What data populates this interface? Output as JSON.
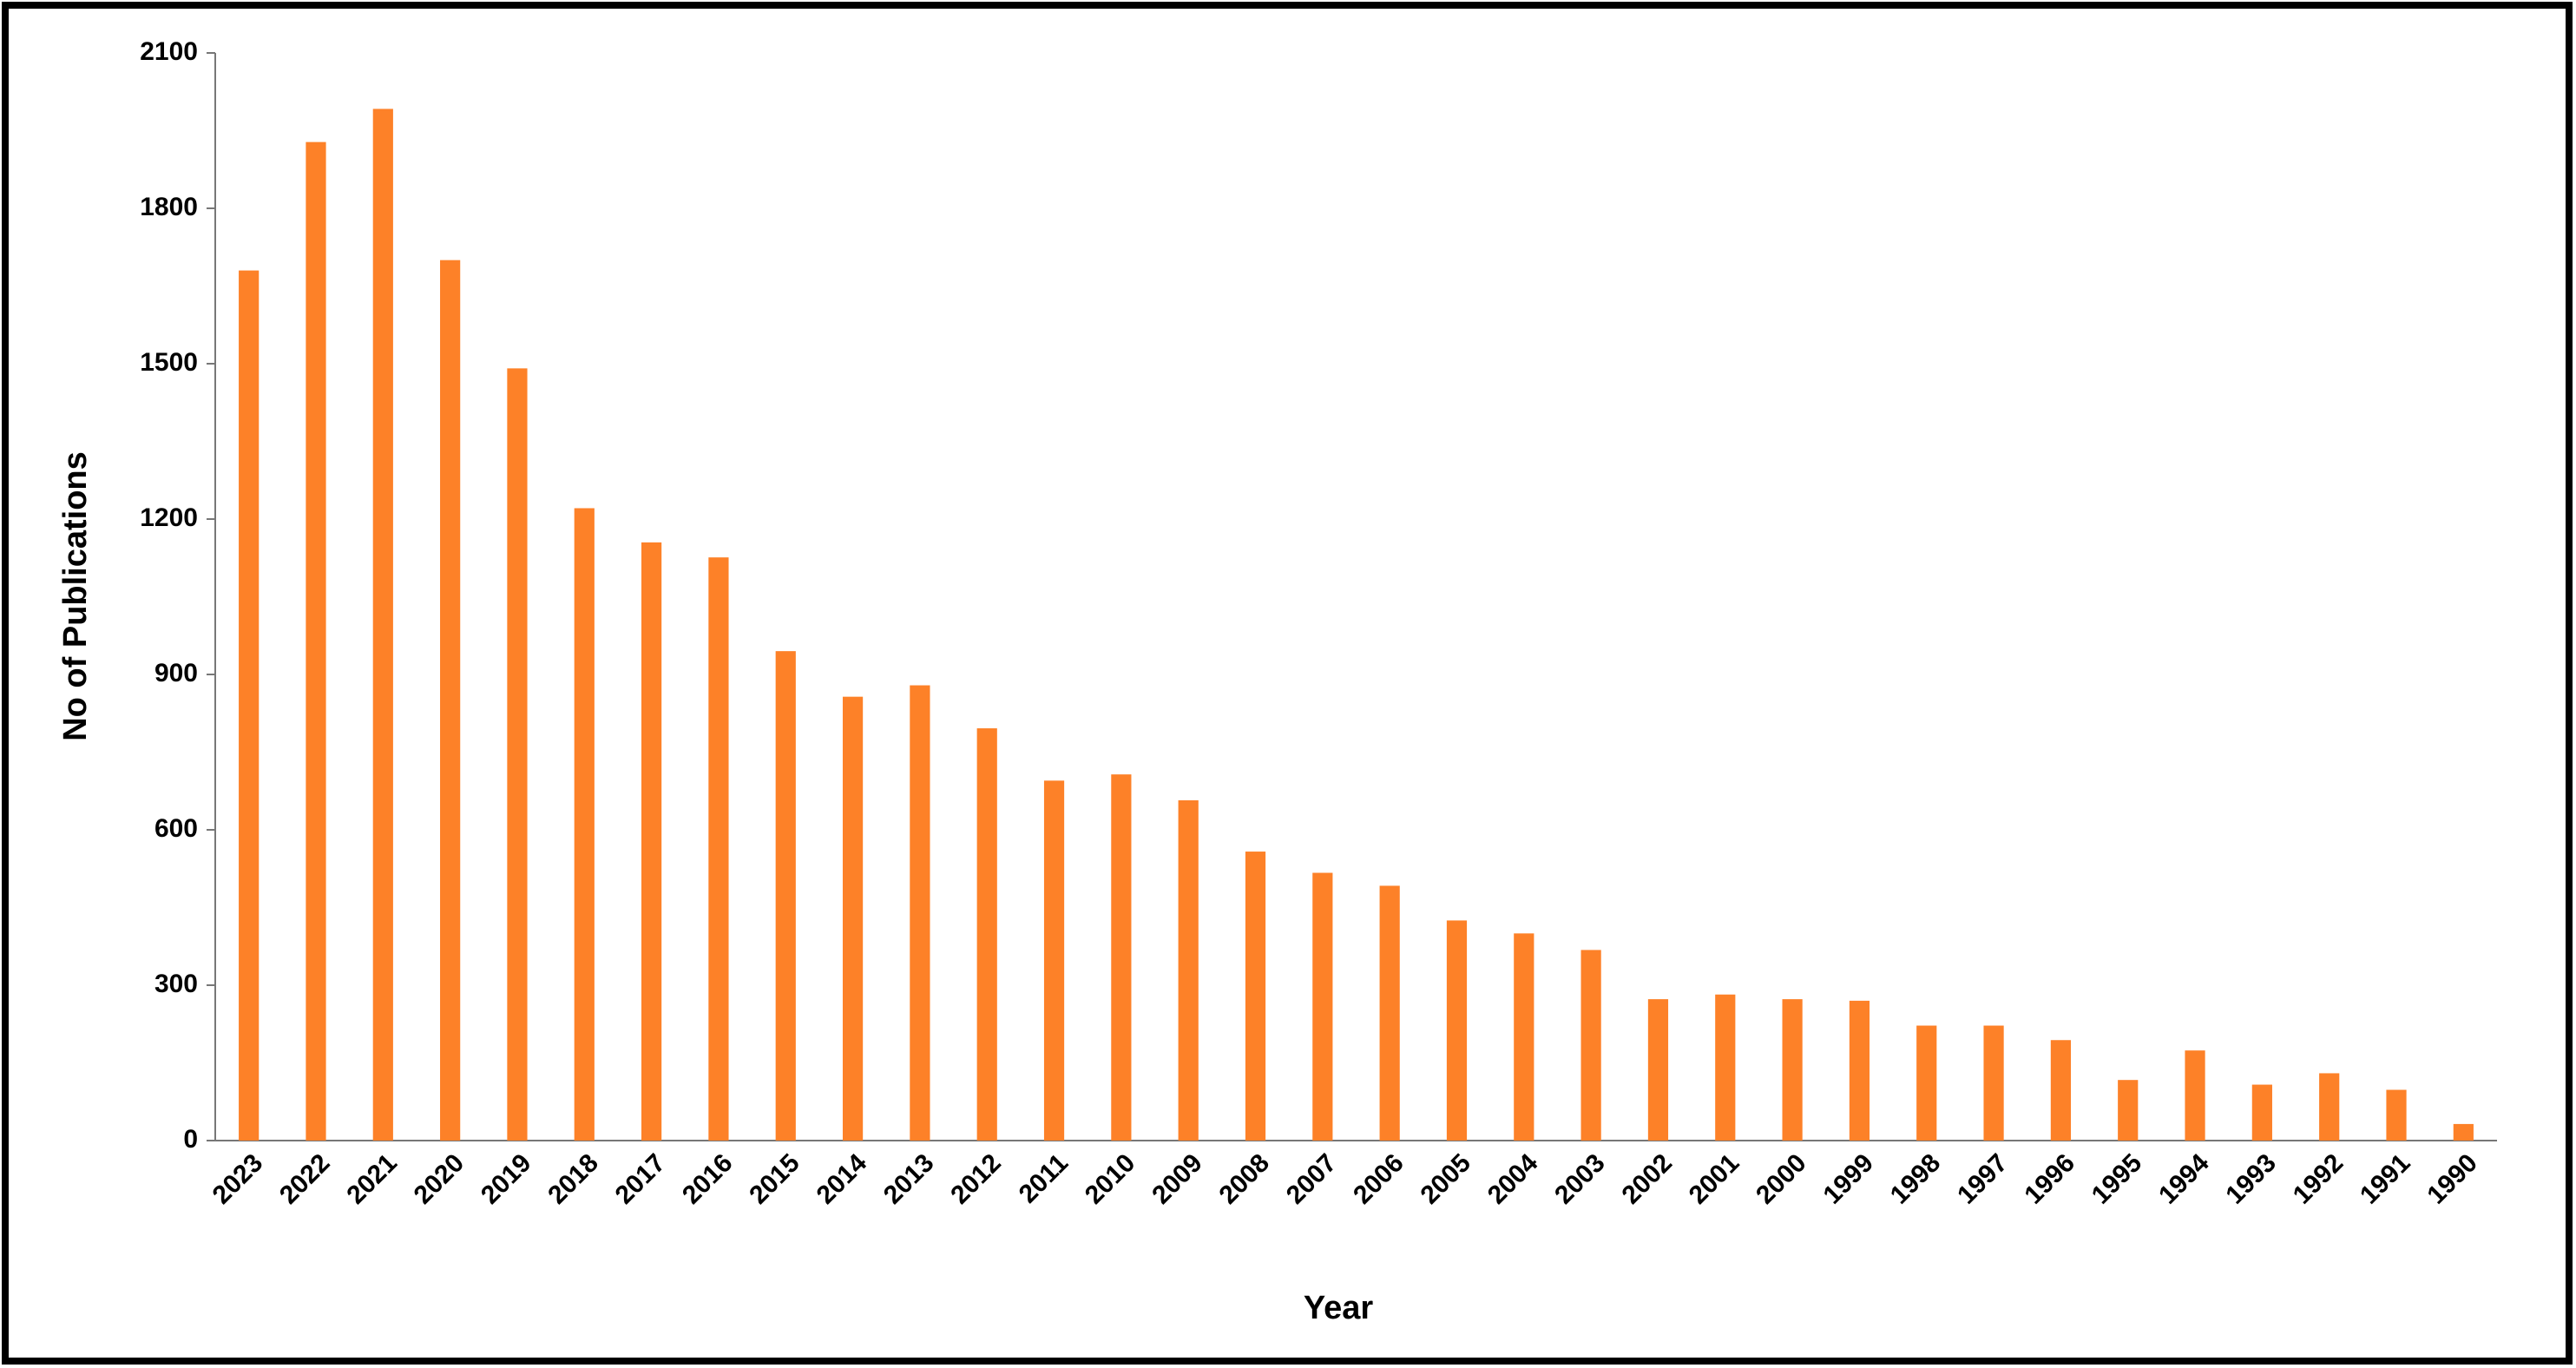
{
  "chart_data": {
    "type": "bar",
    "x_label": "Year",
    "y_label": "No of Publications",
    "categories": [
      "2023",
      "2022",
      "2021",
      "2020",
      "2019",
      "2018",
      "2017",
      "2016",
      "2015",
      "2014",
      "2013",
      "2012",
      "2011",
      "2010",
      "2009",
      "2008",
      "2007",
      "2006",
      "2005",
      "2004",
      "2003",
      "2002",
      "2001",
      "2000",
      "1999",
      "1998",
      "1997",
      "1996",
      "1995",
      "1994",
      "1993",
      "1992",
      "1991",
      "1990"
    ],
    "values": [
      1680,
      1928,
      1992,
      1700,
      1491,
      1221,
      1155,
      1126,
      945,
      857,
      879,
      796,
      695,
      707,
      657,
      558,
      517,
      492,
      425,
      400,
      368,
      273,
      282,
      273,
      270,
      222,
      222,
      194,
      117,
      174,
      108,
      130,
      98,
      32
    ],
    "color": "#fd8128",
    "ylim": [
      0,
      2100
    ],
    "yticks": [
      0,
      300,
      600,
      900,
      1200,
      1500,
      1800,
      2100
    ],
    "grid": false
  }
}
